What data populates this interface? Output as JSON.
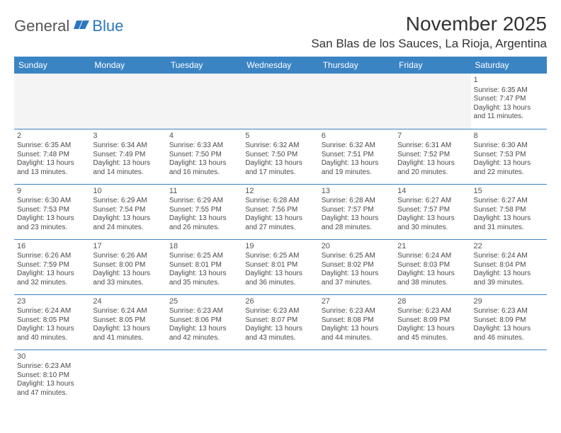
{
  "brand": {
    "name1": "General",
    "name2": "Blue"
  },
  "title": "November 2025",
  "location": "San Blas de los Sauces, La Rioja, Argentina",
  "header_bg": "#3b84c4",
  "header_fg": "#ffffff",
  "day_headers": [
    "Sunday",
    "Monday",
    "Tuesday",
    "Wednesday",
    "Thursday",
    "Friday",
    "Saturday"
  ],
  "weeks": [
    [
      null,
      null,
      null,
      null,
      null,
      null,
      {
        "n": "1",
        "sr": "Sunrise: 6:35 AM",
        "ss": "Sunset: 7:47 PM",
        "d1": "Daylight: 13 hours",
        "d2": "and 11 minutes."
      }
    ],
    [
      {
        "n": "2",
        "sr": "Sunrise: 6:35 AM",
        "ss": "Sunset: 7:48 PM",
        "d1": "Daylight: 13 hours",
        "d2": "and 13 minutes."
      },
      {
        "n": "3",
        "sr": "Sunrise: 6:34 AM",
        "ss": "Sunset: 7:49 PM",
        "d1": "Daylight: 13 hours",
        "d2": "and 14 minutes."
      },
      {
        "n": "4",
        "sr": "Sunrise: 6:33 AM",
        "ss": "Sunset: 7:50 PM",
        "d1": "Daylight: 13 hours",
        "d2": "and 16 minutes."
      },
      {
        "n": "5",
        "sr": "Sunrise: 6:32 AM",
        "ss": "Sunset: 7:50 PM",
        "d1": "Daylight: 13 hours",
        "d2": "and 17 minutes."
      },
      {
        "n": "6",
        "sr": "Sunrise: 6:32 AM",
        "ss": "Sunset: 7:51 PM",
        "d1": "Daylight: 13 hours",
        "d2": "and 19 minutes."
      },
      {
        "n": "7",
        "sr": "Sunrise: 6:31 AM",
        "ss": "Sunset: 7:52 PM",
        "d1": "Daylight: 13 hours",
        "d2": "and 20 minutes."
      },
      {
        "n": "8",
        "sr": "Sunrise: 6:30 AM",
        "ss": "Sunset: 7:53 PM",
        "d1": "Daylight: 13 hours",
        "d2": "and 22 minutes."
      }
    ],
    [
      {
        "n": "9",
        "sr": "Sunrise: 6:30 AM",
        "ss": "Sunset: 7:53 PM",
        "d1": "Daylight: 13 hours",
        "d2": "and 23 minutes."
      },
      {
        "n": "10",
        "sr": "Sunrise: 6:29 AM",
        "ss": "Sunset: 7:54 PM",
        "d1": "Daylight: 13 hours",
        "d2": "and 24 minutes."
      },
      {
        "n": "11",
        "sr": "Sunrise: 6:29 AM",
        "ss": "Sunset: 7:55 PM",
        "d1": "Daylight: 13 hours",
        "d2": "and 26 minutes."
      },
      {
        "n": "12",
        "sr": "Sunrise: 6:28 AM",
        "ss": "Sunset: 7:56 PM",
        "d1": "Daylight: 13 hours",
        "d2": "and 27 minutes."
      },
      {
        "n": "13",
        "sr": "Sunrise: 6:28 AM",
        "ss": "Sunset: 7:57 PM",
        "d1": "Daylight: 13 hours",
        "d2": "and 28 minutes."
      },
      {
        "n": "14",
        "sr": "Sunrise: 6:27 AM",
        "ss": "Sunset: 7:57 PM",
        "d1": "Daylight: 13 hours",
        "d2": "and 30 minutes."
      },
      {
        "n": "15",
        "sr": "Sunrise: 6:27 AM",
        "ss": "Sunset: 7:58 PM",
        "d1": "Daylight: 13 hours",
        "d2": "and 31 minutes."
      }
    ],
    [
      {
        "n": "16",
        "sr": "Sunrise: 6:26 AM",
        "ss": "Sunset: 7:59 PM",
        "d1": "Daylight: 13 hours",
        "d2": "and 32 minutes."
      },
      {
        "n": "17",
        "sr": "Sunrise: 6:26 AM",
        "ss": "Sunset: 8:00 PM",
        "d1": "Daylight: 13 hours",
        "d2": "and 33 minutes."
      },
      {
        "n": "18",
        "sr": "Sunrise: 6:25 AM",
        "ss": "Sunset: 8:01 PM",
        "d1": "Daylight: 13 hours",
        "d2": "and 35 minutes."
      },
      {
        "n": "19",
        "sr": "Sunrise: 6:25 AM",
        "ss": "Sunset: 8:01 PM",
        "d1": "Daylight: 13 hours",
        "d2": "and 36 minutes."
      },
      {
        "n": "20",
        "sr": "Sunrise: 6:25 AM",
        "ss": "Sunset: 8:02 PM",
        "d1": "Daylight: 13 hours",
        "d2": "and 37 minutes."
      },
      {
        "n": "21",
        "sr": "Sunrise: 6:24 AM",
        "ss": "Sunset: 8:03 PM",
        "d1": "Daylight: 13 hours",
        "d2": "and 38 minutes."
      },
      {
        "n": "22",
        "sr": "Sunrise: 6:24 AM",
        "ss": "Sunset: 8:04 PM",
        "d1": "Daylight: 13 hours",
        "d2": "and 39 minutes."
      }
    ],
    [
      {
        "n": "23",
        "sr": "Sunrise: 6:24 AM",
        "ss": "Sunset: 8:05 PM",
        "d1": "Daylight: 13 hours",
        "d2": "and 40 minutes."
      },
      {
        "n": "24",
        "sr": "Sunrise: 6:24 AM",
        "ss": "Sunset: 8:05 PM",
        "d1": "Daylight: 13 hours",
        "d2": "and 41 minutes."
      },
      {
        "n": "25",
        "sr": "Sunrise: 6:23 AM",
        "ss": "Sunset: 8:06 PM",
        "d1": "Daylight: 13 hours",
        "d2": "and 42 minutes."
      },
      {
        "n": "26",
        "sr": "Sunrise: 6:23 AM",
        "ss": "Sunset: 8:07 PM",
        "d1": "Daylight: 13 hours",
        "d2": "and 43 minutes."
      },
      {
        "n": "27",
        "sr": "Sunrise: 6:23 AM",
        "ss": "Sunset: 8:08 PM",
        "d1": "Daylight: 13 hours",
        "d2": "and 44 minutes."
      },
      {
        "n": "28",
        "sr": "Sunrise: 6:23 AM",
        "ss": "Sunset: 8:09 PM",
        "d1": "Daylight: 13 hours",
        "d2": "and 45 minutes."
      },
      {
        "n": "29",
        "sr": "Sunrise: 6:23 AM",
        "ss": "Sunset: 8:09 PM",
        "d1": "Daylight: 13 hours",
        "d2": "and 46 minutes."
      }
    ],
    [
      {
        "n": "30",
        "sr": "Sunrise: 6:23 AM",
        "ss": "Sunset: 8:10 PM",
        "d1": "Daylight: 13 hours",
        "d2": "and 47 minutes."
      },
      null,
      null,
      null,
      null,
      null,
      null
    ]
  ]
}
